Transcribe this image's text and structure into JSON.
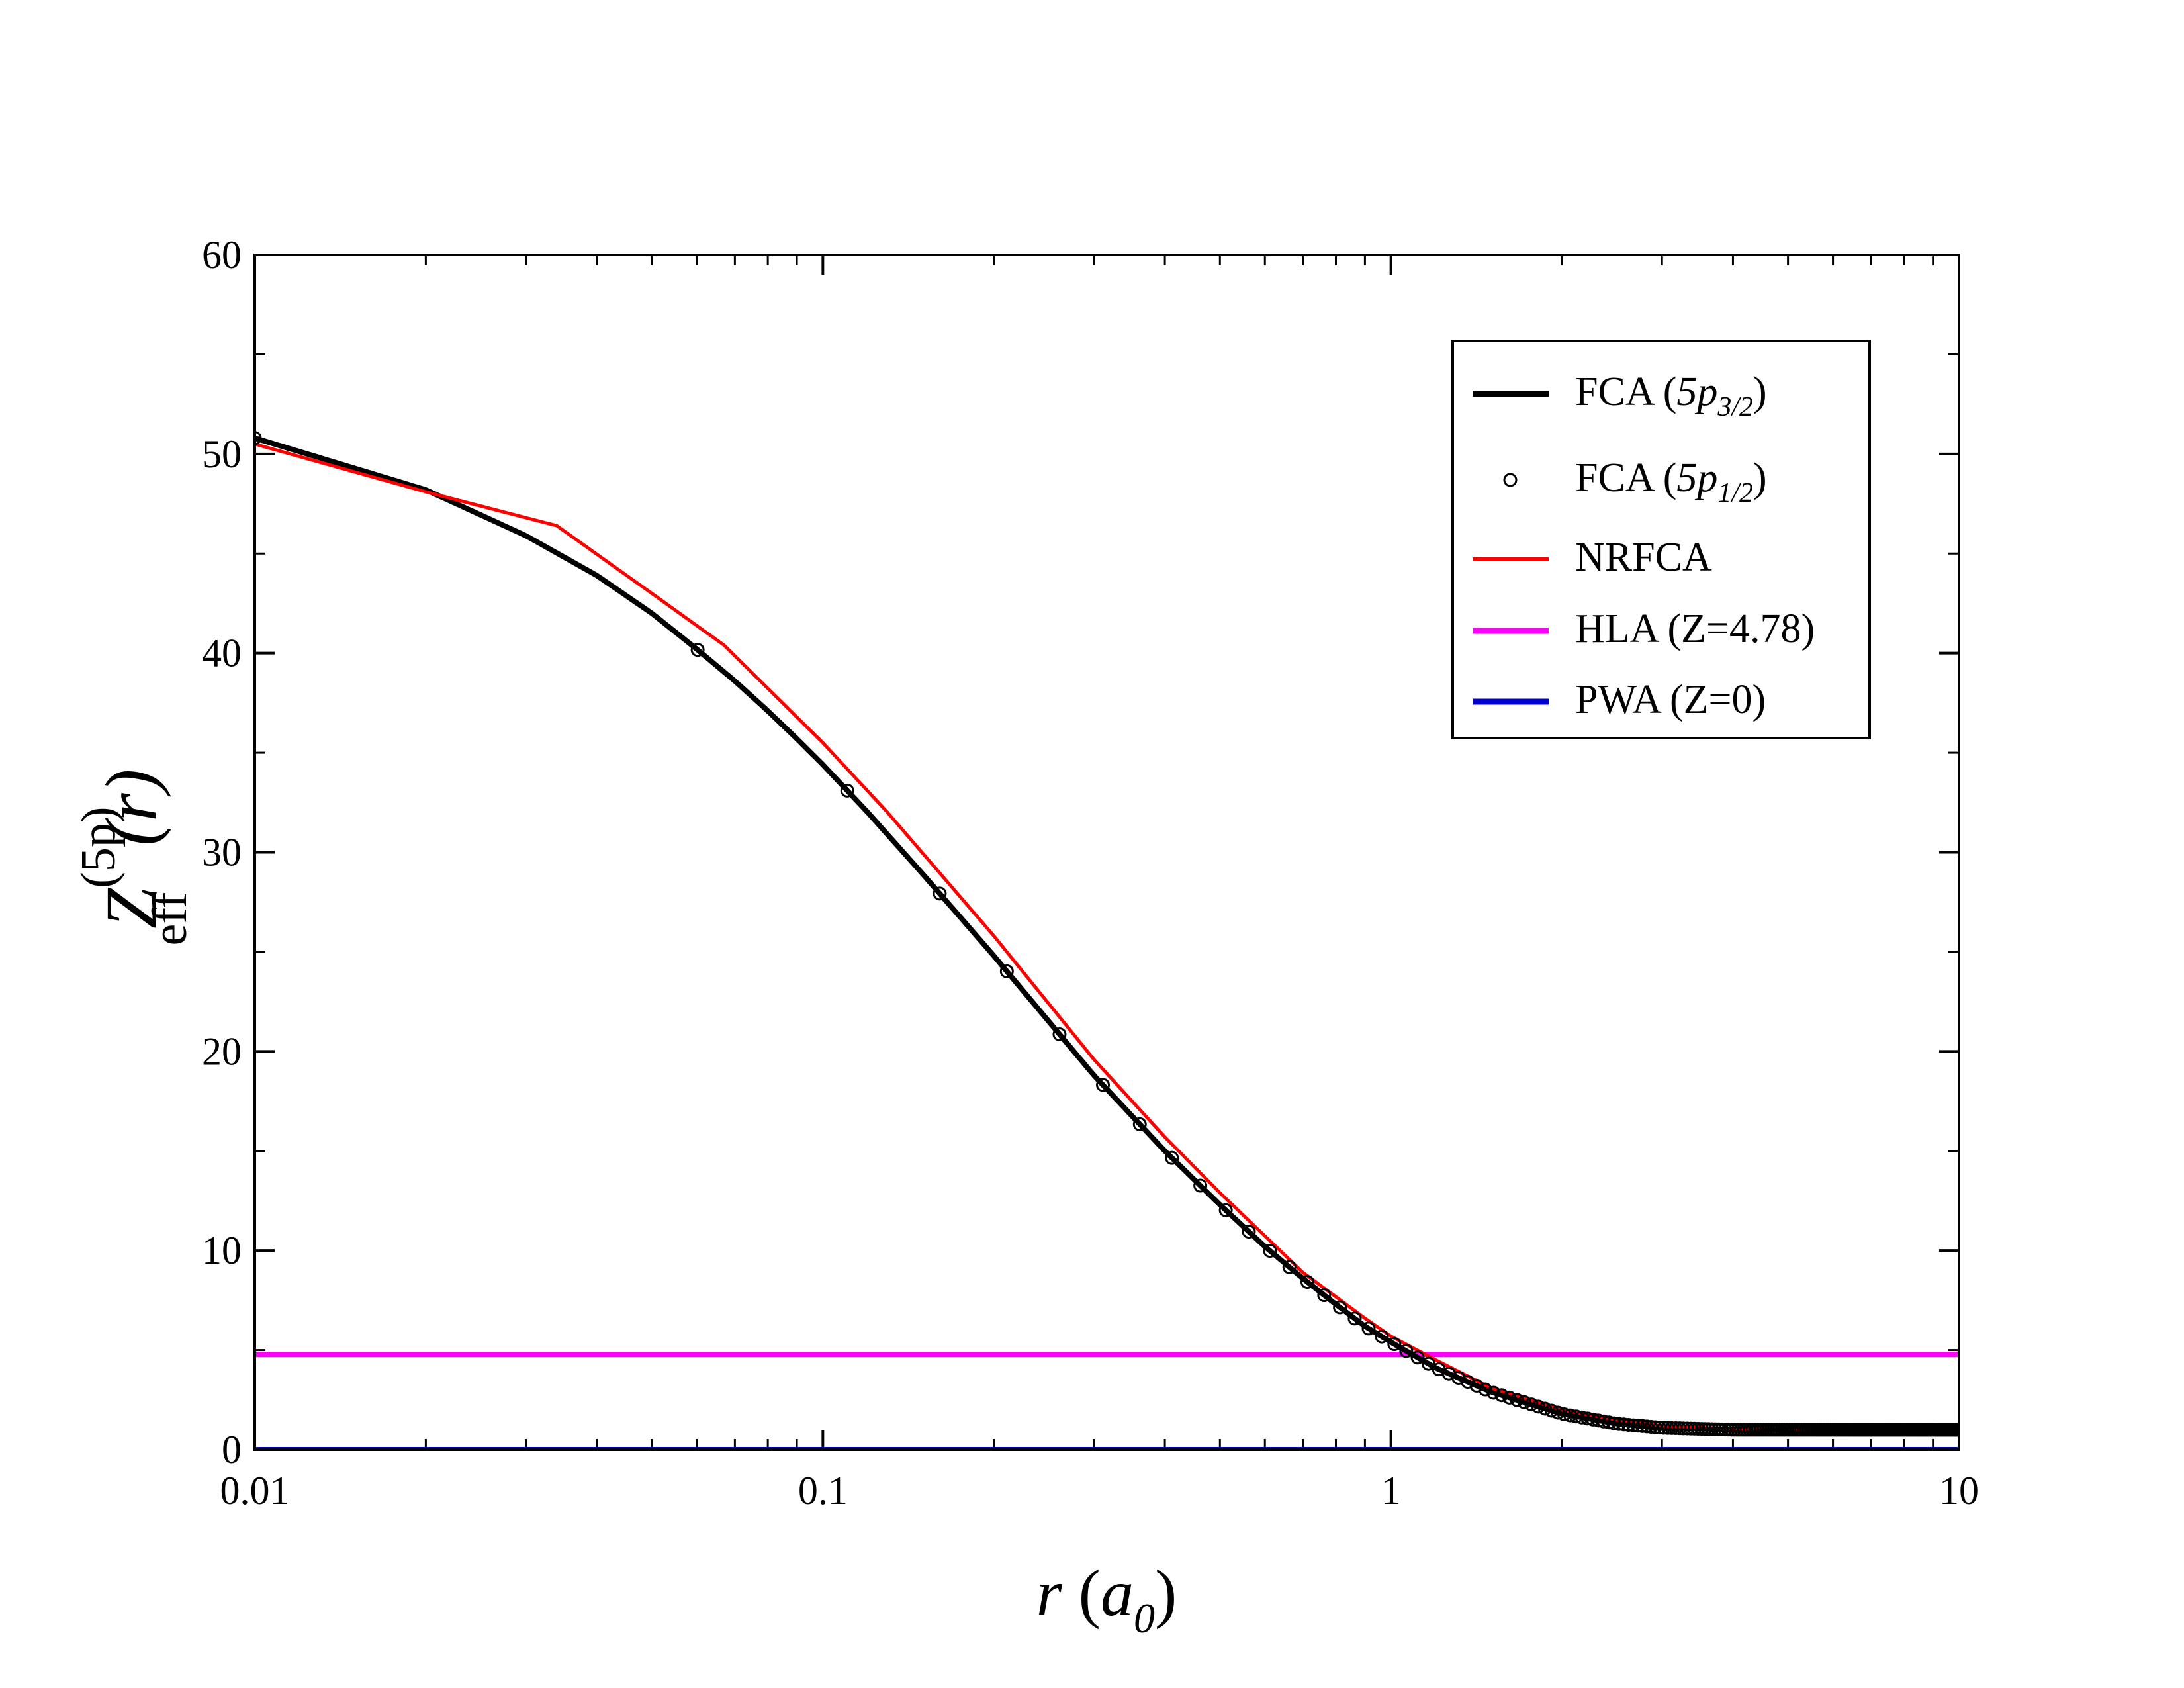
{
  "chart_data": {
    "type": "line",
    "xscale": "log",
    "xlim": [
      0.01,
      10
    ],
    "ylim": [
      0,
      60
    ],
    "xticks": [
      0.01,
      0.1,
      1,
      10
    ],
    "xtick_labels": [
      "0.01",
      "0.1",
      "1",
      "10"
    ],
    "yticks": [
      0,
      10,
      20,
      30,
      40,
      50,
      60
    ],
    "ytick_labels": [
      "0",
      "10",
      "20",
      "30",
      "40",
      "50",
      "60"
    ],
    "xlabel": {
      "main": "r",
      "paren_open": " (",
      "var": "a",
      "sub": "0",
      "paren_close": ")"
    },
    "ylabel": {
      "main": "Z",
      "sup": "(5p)",
      "sub": "eff",
      "arg": "(r)"
    },
    "anchors": {
      "fca": [
        [
          0.01,
          50.8
        ],
        [
          0.02,
          48.2
        ],
        [
          0.03,
          45.9
        ],
        [
          0.04,
          43.9
        ],
        [
          0.05,
          42.0
        ],
        [
          0.06,
          40.2
        ],
        [
          0.07,
          38.6
        ],
        [
          0.08,
          37.1
        ],
        [
          0.09,
          35.7
        ],
        [
          0.1,
          34.4
        ],
        [
          0.12,
          32.0
        ],
        [
          0.15,
          28.9
        ],
        [
          0.2,
          24.8
        ],
        [
          0.3,
          18.8
        ],
        [
          0.4,
          15.0
        ],
        [
          0.5,
          12.3
        ],
        [
          0.6,
          10.2
        ],
        [
          0.7,
          8.6
        ],
        [
          0.8,
          7.3
        ],
        [
          0.9,
          6.2
        ],
        [
          1.0,
          5.4
        ],
        [
          1.2,
          4.1
        ],
        [
          1.5,
          2.9
        ],
        [
          2.0,
          1.8
        ],
        [
          2.5,
          1.3
        ],
        [
          3.0,
          1.1
        ],
        [
          4.0,
          1.0
        ],
        [
          5.0,
          1.0
        ],
        [
          10.0,
          1.0
        ]
      ],
      "nrfca": [
        [
          0.01,
          50.5
        ],
        [
          0.02,
          48.1
        ],
        [
          0.034,
          46.4
        ],
        [
          0.05,
          43.0
        ],
        [
          0.067,
          40.4
        ],
        [
          0.1,
          35.5
        ],
        [
          0.13,
          32.0
        ],
        [
          0.2,
          25.8
        ],
        [
          0.3,
          19.6
        ],
        [
          0.4,
          15.7
        ],
        [
          0.5,
          12.9
        ],
        [
          0.7,
          8.9
        ],
        [
          0.9,
          6.6
        ],
        [
          1.0,
          5.7
        ],
        [
          1.2,
          4.5
        ],
        [
          1.5,
          3.1
        ],
        [
          2.0,
          2.0
        ],
        [
          2.5,
          1.5
        ],
        [
          3.0,
          1.2
        ],
        [
          4.0,
          1.05
        ],
        [
          5.0,
          1.0
        ],
        [
          10.0,
          1.0
        ]
      ]
    },
    "series": [
      {
        "name": "FCA",
        "label_sub": "3/2",
        "style": "line",
        "color": "#000000",
        "width": 8,
        "source": "fca",
        "offset": 0
      },
      {
        "name": "FCA",
        "label_sub": "1/2",
        "style": "circles",
        "color": "#000000",
        "source": "fca",
        "offset": 0,
        "n_points": 200
      },
      {
        "name": "NRFCA",
        "style": "line",
        "color": "#ff0000",
        "width": 5,
        "source": "nrfca",
        "offset": 0
      },
      {
        "name": "HLA (Z=4.78)",
        "style": "hline",
        "color": "#ff00ff",
        "width": 8,
        "y": 4.78
      },
      {
        "name": "PWA (Z=0)",
        "style": "hline",
        "color": "#0000cc",
        "width": 8,
        "y": 0
      }
    ],
    "legend": {
      "position": "top-right",
      "entries": [
        {
          "prefix": "FCA (",
          "var": "5p",
          "sub": "3/2",
          "suffix": ")"
        },
        {
          "prefix": "FCA (",
          "var": "5p",
          "sub": "1/2",
          "suffix": ")"
        },
        {
          "prefix": "NRFCA",
          "var": "",
          "sub": "",
          "suffix": ""
        },
        {
          "prefix": "HLA (Z=4.78)",
          "var": "",
          "sub": "",
          "suffix": ""
        },
        {
          "prefix": "PWA (Z=0)",
          "var": "",
          "sub": "",
          "suffix": ""
        }
      ]
    }
  }
}
